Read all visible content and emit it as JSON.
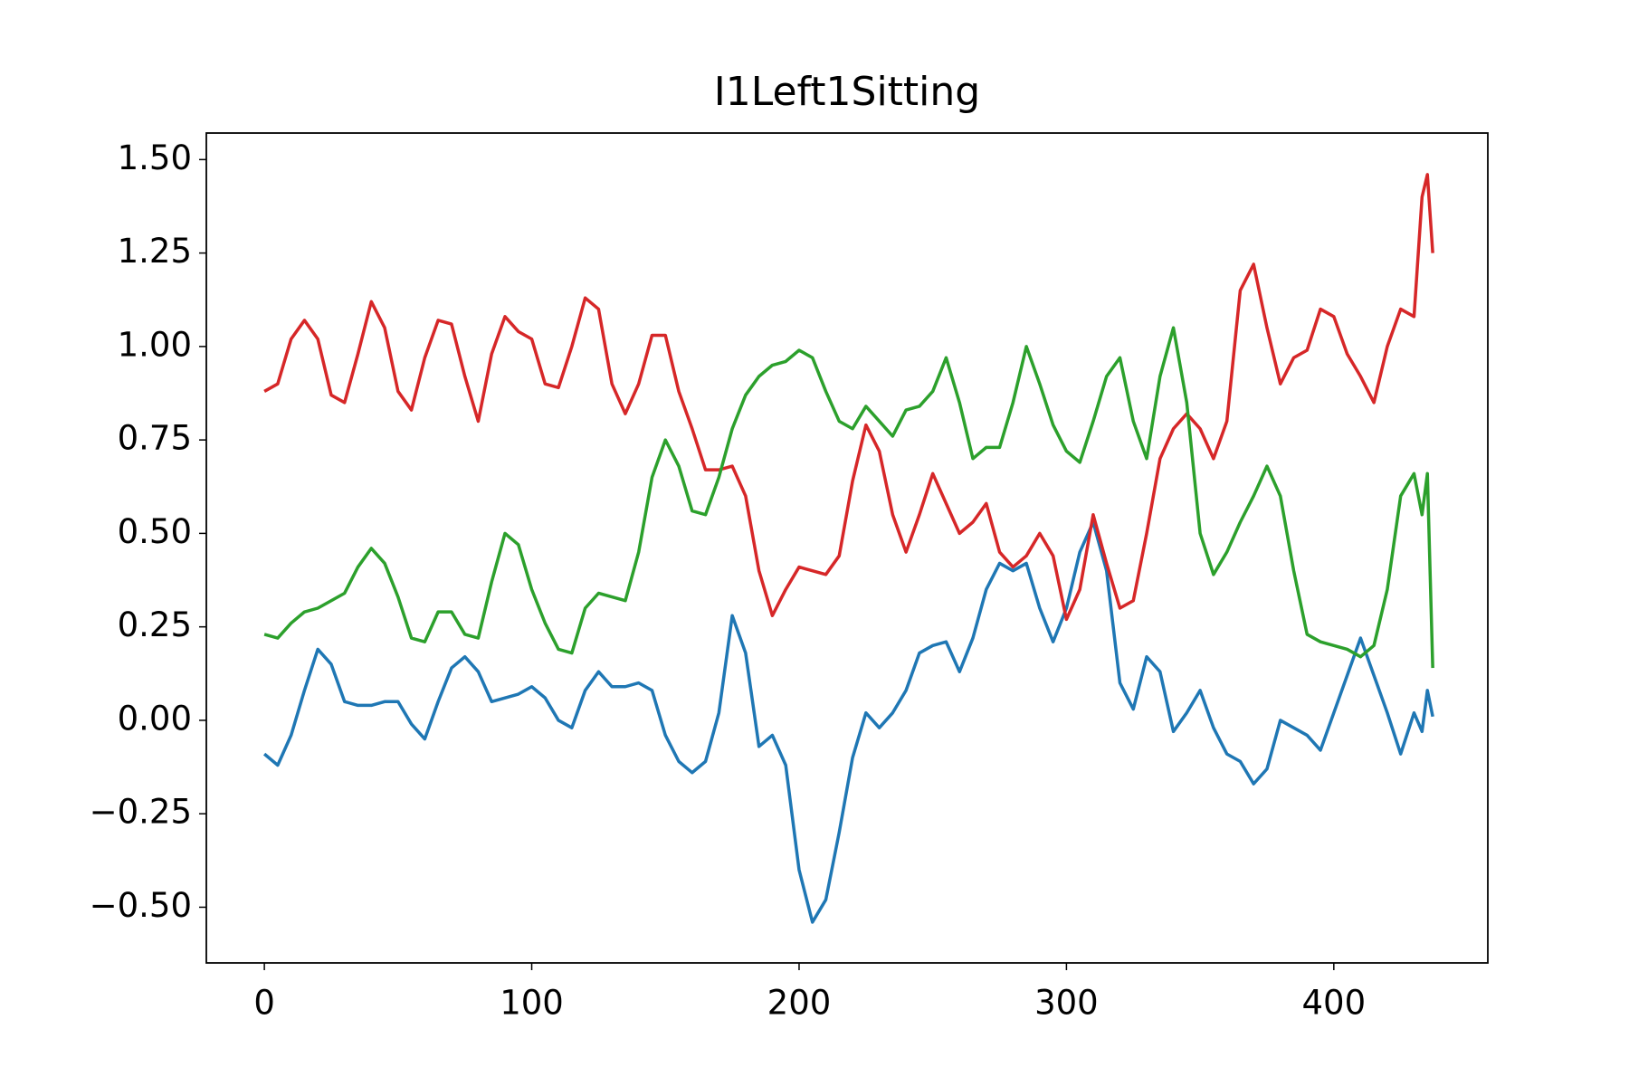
{
  "chart_data": {
    "type": "line",
    "title": "I1Left1Sitting",
    "x": [
      0,
      5,
      10,
      15,
      20,
      25,
      30,
      35,
      40,
      45,
      50,
      55,
      60,
      65,
      70,
      75,
      80,
      85,
      90,
      95,
      100,
      105,
      110,
      115,
      120,
      125,
      130,
      135,
      140,
      145,
      150,
      155,
      160,
      165,
      170,
      175,
      180,
      185,
      190,
      195,
      200,
      205,
      210,
      215,
      220,
      225,
      230,
      235,
      240,
      245,
      250,
      255,
      260,
      265,
      270,
      275,
      280,
      285,
      290,
      295,
      300,
      305,
      310,
      315,
      320,
      325,
      330,
      335,
      340,
      345,
      350,
      355,
      360,
      365,
      370,
      375,
      380,
      385,
      390,
      395,
      400,
      405,
      410,
      415,
      420,
      425,
      430,
      433,
      435,
      437
    ],
    "series": [
      {
        "color": "#1f77b4",
        "values": [
          -0.09,
          -0.12,
          -0.04,
          0.08,
          0.19,
          0.15,
          0.05,
          0.04,
          0.04,
          0.05,
          0.05,
          -0.01,
          -0.05,
          0.05,
          0.14,
          0.17,
          0.13,
          0.05,
          0.06,
          0.07,
          0.09,
          0.06,
          0.0,
          -0.02,
          0.08,
          0.13,
          0.09,
          0.09,
          0.1,
          0.08,
          -0.04,
          -0.11,
          -0.14,
          -0.11,
          0.02,
          0.28,
          0.18,
          -0.07,
          -0.04,
          -0.12,
          -0.4,
          -0.54,
          -0.48,
          -0.3,
          -0.1,
          0.02,
          -0.02,
          0.02,
          0.08,
          0.18,
          0.2,
          0.21,
          0.13,
          0.22,
          0.35,
          0.42,
          0.4,
          0.42,
          0.3,
          0.21,
          0.3,
          0.45,
          0.53,
          0.4,
          0.1,
          0.03,
          0.17,
          0.13,
          -0.03,
          0.02,
          0.08,
          -0.02,
          -0.09,
          -0.11,
          -0.17,
          -0.13,
          0.0,
          -0.02,
          -0.04,
          -0.08,
          0.02,
          0.12,
          0.22,
          0.12,
          0.02,
          -0.09,
          0.02,
          -0.03,
          0.08,
          0.01
        ]
      },
      {
        "color": "#d62728",
        "values": [
          0.88,
          0.9,
          1.02,
          1.07,
          1.02,
          0.87,
          0.85,
          0.98,
          1.12,
          1.05,
          0.88,
          0.83,
          0.97,
          1.07,
          1.06,
          0.92,
          0.8,
          0.98,
          1.08,
          1.04,
          1.02,
          0.9,
          0.89,
          1.0,
          1.13,
          1.1,
          0.9,
          0.82,
          0.9,
          1.03,
          1.03,
          0.88,
          0.78,
          0.67,
          0.67,
          0.68,
          0.6,
          0.4,
          0.28,
          0.35,
          0.41,
          0.4,
          0.39,
          0.44,
          0.64,
          0.79,
          0.72,
          0.55,
          0.45,
          0.55,
          0.66,
          0.58,
          0.5,
          0.53,
          0.58,
          0.45,
          0.41,
          0.44,
          0.5,
          0.44,
          0.27,
          0.35,
          0.55,
          0.42,
          0.3,
          0.32,
          0.5,
          0.7,
          0.78,
          0.82,
          0.78,
          0.7,
          0.8,
          1.15,
          1.22,
          1.05,
          0.9,
          0.97,
          0.99,
          1.1,
          1.08,
          0.98,
          0.92,
          0.85,
          1.0,
          1.1,
          1.08,
          1.4,
          1.46,
          1.25
        ]
      },
      {
        "color": "#2ca02c",
        "values": [
          0.23,
          0.22,
          0.26,
          0.29,
          0.3,
          0.32,
          0.34,
          0.41,
          0.46,
          0.42,
          0.33,
          0.22,
          0.21,
          0.29,
          0.29,
          0.23,
          0.22,
          0.37,
          0.5,
          0.47,
          0.35,
          0.26,
          0.19,
          0.18,
          0.3,
          0.34,
          0.33,
          0.32,
          0.45,
          0.65,
          0.75,
          0.68,
          0.56,
          0.55,
          0.65,
          0.78,
          0.87,
          0.92,
          0.95,
          0.96,
          0.99,
          0.97,
          0.88,
          0.8,
          0.78,
          0.84,
          0.8,
          0.76,
          0.83,
          0.84,
          0.88,
          0.97,
          0.85,
          0.7,
          0.73,
          0.73,
          0.85,
          1.0,
          0.9,
          0.79,
          0.72,
          0.69,
          0.8,
          0.92,
          0.97,
          0.8,
          0.7,
          0.92,
          1.05,
          0.85,
          0.5,
          0.39,
          0.45,
          0.53,
          0.6,
          0.68,
          0.6,
          0.4,
          0.23,
          0.21,
          0.2,
          0.19,
          0.17,
          0.2,
          0.35,
          0.6,
          0.66,
          0.55,
          0.66,
          0.14
        ]
      }
    ],
    "xlim": [
      -21.7,
      457.6
    ],
    "ylim": [
      -0.649,
      1.571
    ],
    "xticks": [
      0,
      100,
      200,
      300,
      400
    ],
    "yticks": [
      {
        "value": -0.5,
        "label": "−0.50"
      },
      {
        "value": -0.25,
        "label": "−0.25"
      },
      {
        "value": 0,
        "label": "0.00"
      },
      0.25,
      {
        "value": 0.5,
        "label": "0.50"
      },
      0.75,
      {
        "value": 1.0,
        "label": "1.00"
      },
      1.25,
      {
        "value": 1.5,
        "label": "1.50"
      }
    ],
    "grid": false
  }
}
